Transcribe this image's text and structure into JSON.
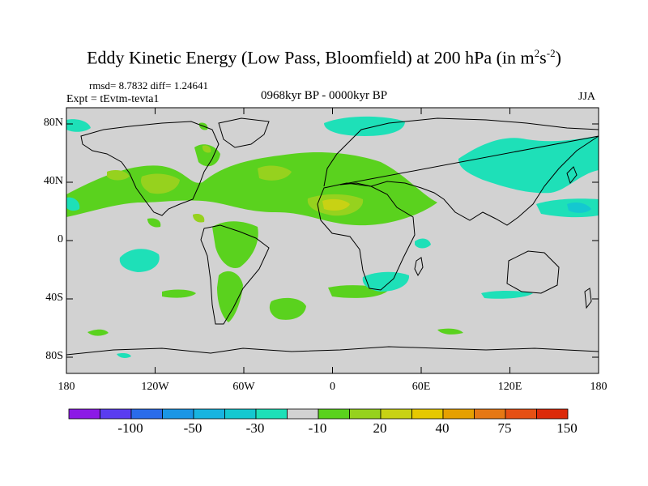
{
  "title": {
    "text": "Eddy Kinetic Energy (Low Pass, Bloomfield) at 200 hPa (in m",
    "sup1": "2",
    "mid": "s",
    "sup2": "-2",
    "end": ")"
  },
  "stats": "rmsd= 8.7832 diff= 1.24641",
  "expt": "Expt = tEvtm-tevta1",
  "period": "0968kyr BP - 0000kyr BP",
  "season": "JJA",
  "lat_labels": [
    "80N",
    "40N",
    "0",
    "40S",
    "80S"
  ],
  "lon_labels": [
    "180",
    "120W",
    "60W",
    "0",
    "60E",
    "120E",
    "180"
  ],
  "colorbar": {
    "labels": [
      "-100",
      "-50",
      "-30",
      "-10",
      "20",
      "40",
      "75",
      "150"
    ],
    "colors": [
      "#8c1ae6",
      "#5a3cf0",
      "#2a6cea",
      "#1a96e6",
      "#18b4e0",
      "#14c8d0",
      "#1ee0b8",
      "#d2d2d2",
      "#5ad21e",
      "#96d21e",
      "#c8d214",
      "#e6c800",
      "#e6a000",
      "#e67814",
      "#e65014",
      "#dc2a0a"
    ]
  },
  "colors": {
    "land_bg": "#d2d2d2",
    "pos_light": "#5ad21e",
    "pos_mid": "#96d21e",
    "pos_high": "#c8d214",
    "neg_light": "#1ee0b8",
    "neg_mid": "#14c8d0"
  }
}
